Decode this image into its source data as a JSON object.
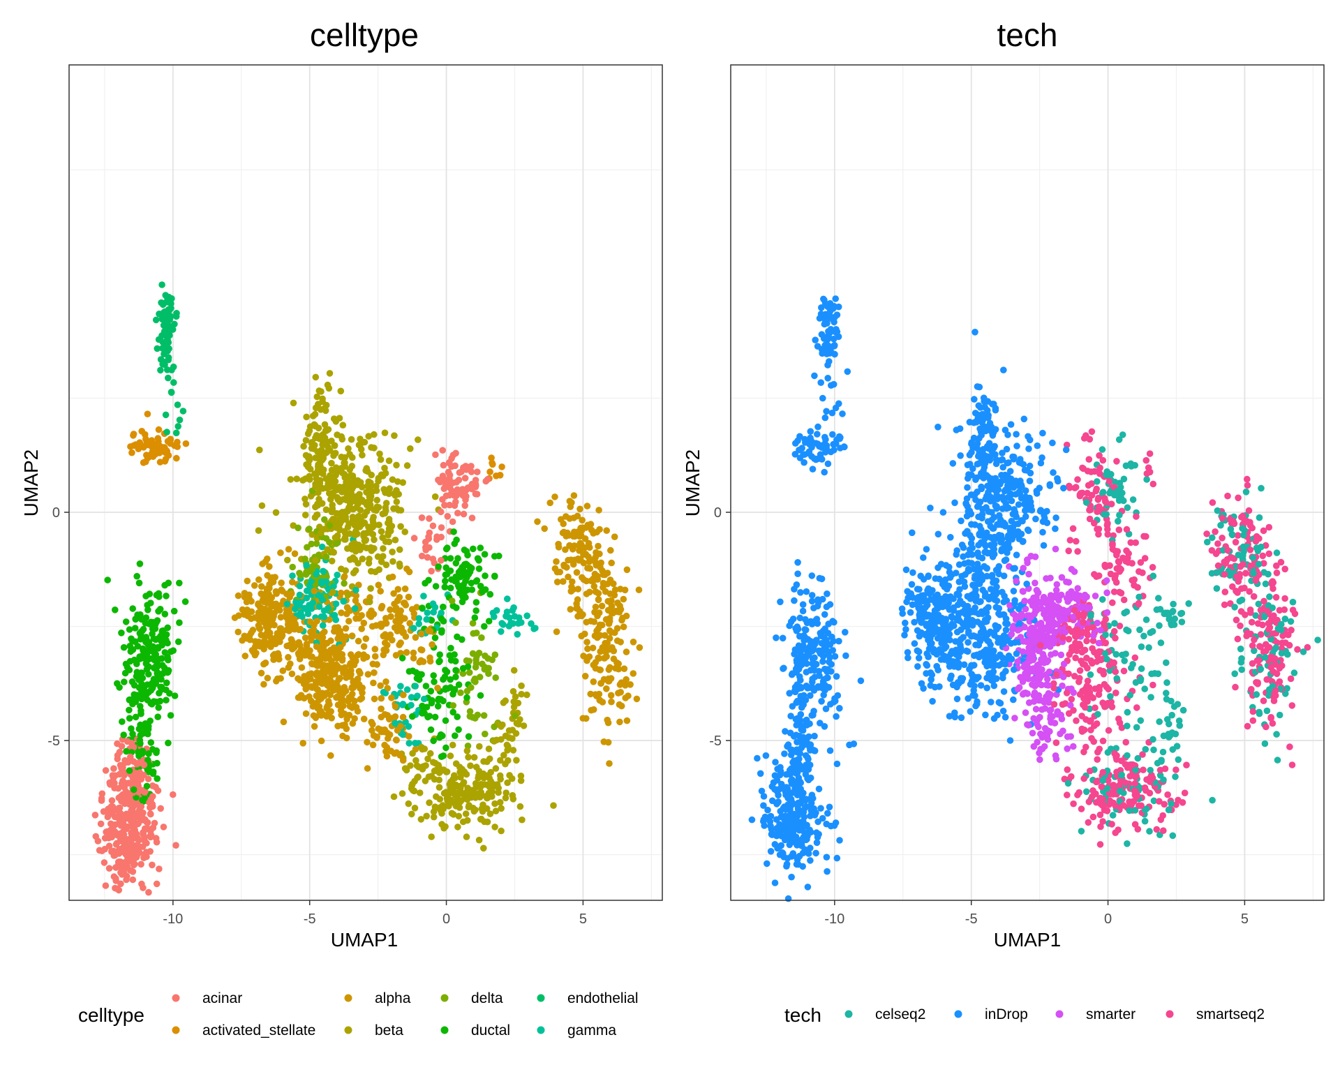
{
  "panels": [
    {
      "title": "celltype",
      "xlabel": "UMAP1",
      "ylabel": "UMAP2",
      "legend_title": "celltype",
      "legend_entries": [
        "acinar",
        "activated_stellate",
        "alpha",
        "beta",
        "delta",
        "ductal",
        "endothelial",
        "gamma"
      ]
    },
    {
      "title": "tech",
      "xlabel": "UMAP1",
      "ylabel": "UMAP2",
      "legend_title": "tech",
      "legend_entries": [
        "celseq2",
        "inDrop",
        "smarter",
        "smartseq2"
      ]
    }
  ],
  "chart_data": [
    {
      "type": "scatter",
      "title": "celltype",
      "xlabel": "UMAP1",
      "ylabel": "UMAP2",
      "xlim": [
        -13.8,
        7.9
      ],
      "ylim": [
        -8.5,
        9.8
      ],
      "xticks": [
        -10,
        -5,
        0,
        5
      ],
      "yticks": [
        -5,
        0
      ],
      "grid": true,
      "legend": "bottom",
      "series": [
        {
          "name": "acinar",
          "color": "#F8766D",
          "clusters": [
            {
              "cx": -11.5,
              "cy": -6.7,
              "sx": 0.55,
              "sy": 0.65,
              "n": 260
            },
            {
              "cx": -11.5,
              "cy": -5.6,
              "sx": 0.3,
              "sy": 0.3,
              "n": 40
            },
            {
              "cx": -11.7,
              "cy": -7.5,
              "sx": 0.4,
              "sy": 0.3,
              "n": 50
            },
            {
              "cx": 0.4,
              "cy": 0.6,
              "sx": 0.45,
              "sy": 0.35,
              "n": 80
            },
            {
              "cx": -0.5,
              "cy": -0.5,
              "sx": 0.25,
              "sy": 0.4,
              "n": 25
            }
          ]
        },
        {
          "name": "activated_stellate",
          "color": "#DB8E00",
          "clusters": [
            {
              "cx": -10.7,
              "cy": 1.4,
              "sx": 0.45,
              "sy": 0.2,
              "n": 60
            },
            {
              "cx": 1.7,
              "cy": 1.0,
              "sx": 0.15,
              "sy": 0.15,
              "n": 8
            }
          ]
        },
        {
          "name": "alpha",
          "color": "#CD9600",
          "clusters": [
            {
              "cx": -6.5,
              "cy": -2.3,
              "sx": 0.55,
              "sy": 0.6,
              "n": 180
            },
            {
              "cx": -4.5,
              "cy": -3.2,
              "sx": 0.9,
              "sy": 0.7,
              "n": 260
            },
            {
              "cx": -3.7,
              "cy": -4.0,
              "sx": 0.5,
              "sy": 0.4,
              "n": 80
            },
            {
              "cx": -2.0,
              "cy": -2.6,
              "sx": 0.8,
              "sy": 0.6,
              "n": 110
            },
            {
              "cx": -2.1,
              "cy": -4.7,
              "sx": 0.4,
              "sy": 0.4,
              "n": 50
            },
            {
              "cx": 4.8,
              "cy": -0.8,
              "sx": 0.5,
              "sy": 0.6,
              "n": 110
            },
            {
              "cx": 5.8,
              "cy": -2.8,
              "sx": 0.5,
              "sy": 1.0,
              "n": 170
            }
          ]
        },
        {
          "name": "beta",
          "color": "#ABA300",
          "clusters": [
            {
              "cx": -4.6,
              "cy": 1.5,
              "sx": 0.3,
              "sy": 0.7,
              "n": 90
            },
            {
              "cx": -3.6,
              "cy": 0.3,
              "sx": 1.0,
              "sy": 0.8,
              "n": 280
            },
            {
              "cx": -2.7,
              "cy": -0.5,
              "sx": 0.6,
              "sy": 0.6,
              "n": 90
            },
            {
              "cx": 0.7,
              "cy": -6.1,
              "sx": 0.9,
              "sy": 0.45,
              "n": 200
            },
            {
              "cx": 2.4,
              "cy": -4.8,
              "sx": 0.3,
              "sy": 0.6,
              "n": 40
            },
            {
              "cx": -1.0,
              "cy": -5.5,
              "sx": 0.35,
              "sy": 0.3,
              "n": 25
            }
          ]
        },
        {
          "name": "delta",
          "color": "#7CAE00",
          "clusters": [
            {
              "cx": -4.8,
              "cy": -1.2,
              "sx": 0.4,
              "sy": 0.45,
              "n": 60
            },
            {
              "cx": 1.0,
              "cy": -3.5,
              "sx": 0.5,
              "sy": 0.8,
              "n": 50
            }
          ]
        },
        {
          "name": "ductal",
          "color": "#0CB702",
          "clusters": [
            {
              "cx": -10.8,
              "cy": -3.2,
              "sx": 0.55,
              "sy": 0.7,
              "n": 200
            },
            {
              "cx": -11.2,
              "cy": -4.7,
              "sx": 0.2,
              "sy": 0.45,
              "n": 40
            },
            {
              "cx": -11.0,
              "cy": -5.7,
              "sx": 0.3,
              "sy": 0.4,
              "n": 30
            },
            {
              "cx": 0.7,
              "cy": -1.4,
              "sx": 0.55,
              "sy": 0.4,
              "n": 90
            },
            {
              "cx": -0.3,
              "cy": -3.8,
              "sx": 0.6,
              "sy": 0.8,
              "n": 90
            }
          ]
        },
        {
          "name": "endothelial",
          "color": "#00BE67",
          "clusters": [
            {
              "cx": -10.2,
              "cy": 3.9,
              "sx": 0.18,
              "sy": 0.45,
              "n": 70
            },
            {
              "cx": -10.0,
              "cy": 2.3,
              "sx": 0.3,
              "sy": 0.35,
              "n": 10
            }
          ]
        },
        {
          "name": "gamma",
          "color": "#00C19A",
          "clusters": [
            {
              "cx": -4.6,
              "cy": -1.9,
              "sx": 0.55,
              "sy": 0.4,
              "n": 90
            },
            {
              "cx": 2.3,
              "cy": -2.3,
              "sx": 0.4,
              "sy": 0.15,
              "n": 25
            },
            {
              "cx": -1.6,
              "cy": -4.3,
              "sx": 0.4,
              "sy": 0.35,
              "n": 30
            },
            {
              "cx": -0.5,
              "cy": -2.3,
              "sx": 0.4,
              "sy": 0.2,
              "n": 20
            }
          ]
        }
      ]
    },
    {
      "type": "scatter",
      "title": "tech",
      "xlabel": "UMAP1",
      "ylabel": "UMAP2",
      "xlim": [
        -13.8,
        7.9
      ],
      "ylim": [
        -8.5,
        9.8
      ],
      "xticks": [
        -10,
        -5,
        0,
        5
      ],
      "yticks": [
        -5,
        0
      ],
      "grid": true,
      "legend": "bottom",
      "series": [
        {
          "name": "celseq2",
          "color": "#1DB5A5",
          "clusters": [
            {
              "cx": 0.2,
              "cy": 0.4,
              "sx": 0.45,
              "sy": 0.5,
              "n": 50
            },
            {
              "cx": 4.8,
              "cy": -0.7,
              "sx": 0.5,
              "sy": 0.6,
              "n": 50
            },
            {
              "cx": 5.9,
              "cy": -2.9,
              "sx": 0.5,
              "sy": 1.0,
              "n": 70
            },
            {
              "cx": 0.7,
              "cy": -6.1,
              "sx": 0.9,
              "sy": 0.45,
              "n": 60
            },
            {
              "cx": 2.3,
              "cy": -4.9,
              "sx": 0.3,
              "sy": 0.6,
              "n": 30
            },
            {
              "cx": 0.8,
              "cy": -3.2,
              "sx": 0.7,
              "sy": 0.8,
              "n": 60
            },
            {
              "cx": 2.3,
              "cy": -2.3,
              "sx": 0.4,
              "sy": 0.15,
              "n": 20
            }
          ]
        },
        {
          "name": "inDrop",
          "color": "#1A90FF",
          "clusters": [
            {
              "cx": -10.2,
              "cy": 3.9,
              "sx": 0.18,
              "sy": 0.45,
              "n": 70
            },
            {
              "cx": -10.0,
              "cy": 2.3,
              "sx": 0.3,
              "sy": 0.35,
              "n": 10
            },
            {
              "cx": -10.6,
              "cy": 1.4,
              "sx": 0.45,
              "sy": 0.2,
              "n": 60
            },
            {
              "cx": -10.8,
              "cy": -3.2,
              "sx": 0.55,
              "sy": 0.7,
              "n": 200
            },
            {
              "cx": -11.2,
              "cy": -4.8,
              "sx": 0.25,
              "sy": 0.5,
              "n": 50
            },
            {
              "cx": -11.5,
              "cy": -6.6,
              "sx": 0.55,
              "sy": 0.65,
              "n": 280
            },
            {
              "cx": -6.5,
              "cy": -2.3,
              "sx": 0.55,
              "sy": 0.6,
              "n": 180
            },
            {
              "cx": -4.6,
              "cy": -2.8,
              "sx": 0.9,
              "sy": 0.8,
              "n": 320
            },
            {
              "cx": -4.6,
              "cy": 1.5,
              "sx": 0.3,
              "sy": 0.7,
              "n": 90
            },
            {
              "cx": -3.8,
              "cy": 0.2,
              "sx": 0.9,
              "sy": 0.8,
              "n": 280
            },
            {
              "cx": -4.7,
              "cy": -1.3,
              "sx": 0.45,
              "sy": 0.45,
              "n": 70
            }
          ]
        },
        {
          "name": "smarter",
          "color": "#D550F5",
          "clusters": [
            {
              "cx": -2.5,
              "cy": -3.0,
              "sx": 0.55,
              "sy": 0.9,
              "n": 230
            },
            {
              "cx": -1.5,
              "cy": -2.2,
              "sx": 0.8,
              "sy": 0.35,
              "n": 110
            },
            {
              "cx": -2.2,
              "cy": -4.6,
              "sx": 0.4,
              "sy": 0.4,
              "n": 50
            }
          ]
        },
        {
          "name": "smartseq2",
          "color": "#F5468F",
          "clusters": [
            {
              "cx": -0.5,
              "cy": 0.4,
              "sx": 0.5,
              "sy": 0.6,
              "n": 70
            },
            {
              "cx": 4.7,
              "cy": -0.8,
              "sx": 0.55,
              "sy": 0.6,
              "n": 90
            },
            {
              "cx": 5.8,
              "cy": -2.8,
              "sx": 0.5,
              "sy": 1.0,
              "n": 130
            },
            {
              "cx": 0.6,
              "cy": -6.1,
              "sx": 0.9,
              "sy": 0.45,
              "n": 150
            },
            {
              "cx": 0.5,
              "cy": -1.3,
              "sx": 0.5,
              "sy": 0.5,
              "n": 60
            },
            {
              "cx": -0.6,
              "cy": -3.6,
              "sx": 0.7,
              "sy": 0.9,
              "n": 140
            },
            {
              "cx": -1.0,
              "cy": -2.5,
              "sx": 0.5,
              "sy": 0.3,
              "n": 40
            },
            {
              "cx": 1.5,
              "cy": 0.9,
              "sx": 0.1,
              "sy": 0.15,
              "n": 6
            }
          ]
        }
      ]
    }
  ]
}
